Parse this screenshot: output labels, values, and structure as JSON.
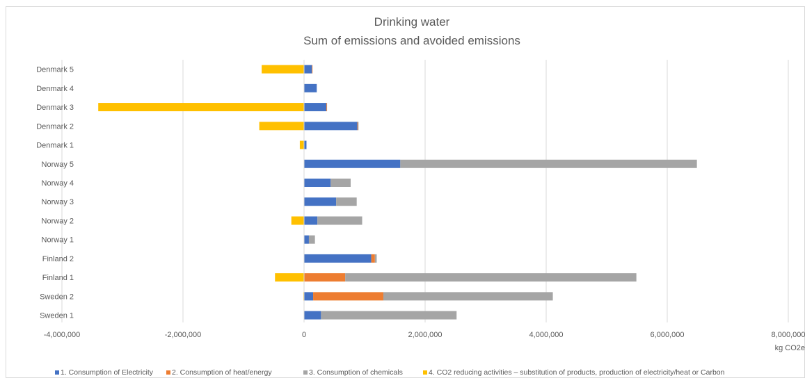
{
  "chart_data": {
    "type": "bar",
    "orientation": "horizontal",
    "stacked": true,
    "title": "Drinking water",
    "subtitle": "Sum of emissions and avoided emissions",
    "xlabel": "kg CO2e",
    "xlim": [
      -4000000,
      8000000
    ],
    "xticks": [
      -4000000,
      -2000000,
      0,
      2000000,
      4000000,
      6000000,
      8000000
    ],
    "xtick_labels": [
      "-4,000,000",
      "-2,000,000",
      "0",
      "2,000,000",
      "4,000,000",
      "6,000,000",
      "8,000,000"
    ],
    "grid": "vertical",
    "legend_position": "bottom",
    "categories": [
      "Denmark 5",
      "Denmark 4",
      "Denmark 3",
      "Denmark 2",
      "Denmark 1",
      "Norway 5",
      "Norway 4",
      "Norway 3",
      "Norway 2",
      "Norway 1",
      "Finland 2",
      "Finland 1",
      "Sweden 2",
      "Sweden 1"
    ],
    "series": [
      {
        "name": "1. Consumption of Electricity",
        "color": "#4472c4",
        "values": [
          130000,
          210000,
          370000,
          880000,
          40000,
          1590000,
          440000,
          530000,
          220000,
          80000,
          1110000,
          0,
          150000,
          280000
        ]
      },
      {
        "name": "2. Consumption of heat/energy",
        "color": "#ed7d31",
        "values": [
          10000,
          0,
          10000,
          10000,
          0,
          0,
          0,
          0,
          0,
          0,
          60000,
          680000,
          1160000,
          0
        ]
      },
      {
        "name": "3. Consumption of chemicals",
        "color": "#a5a5a5",
        "values": [
          0,
          0,
          0,
          10000,
          0,
          4900000,
          330000,
          340000,
          740000,
          100000,
          30000,
          4810000,
          2800000,
          2240000
        ]
      },
      {
        "name": "4. CO2 reducing activities – substitution of products, production of electricity/heat or Carbon",
        "color": "#ffc000",
        "values": [
          -700000,
          0,
          -3400000,
          -740000,
          -70000,
          0,
          0,
          0,
          -210000,
          0,
          0,
          -480000,
          -10000,
          0
        ]
      }
    ]
  }
}
